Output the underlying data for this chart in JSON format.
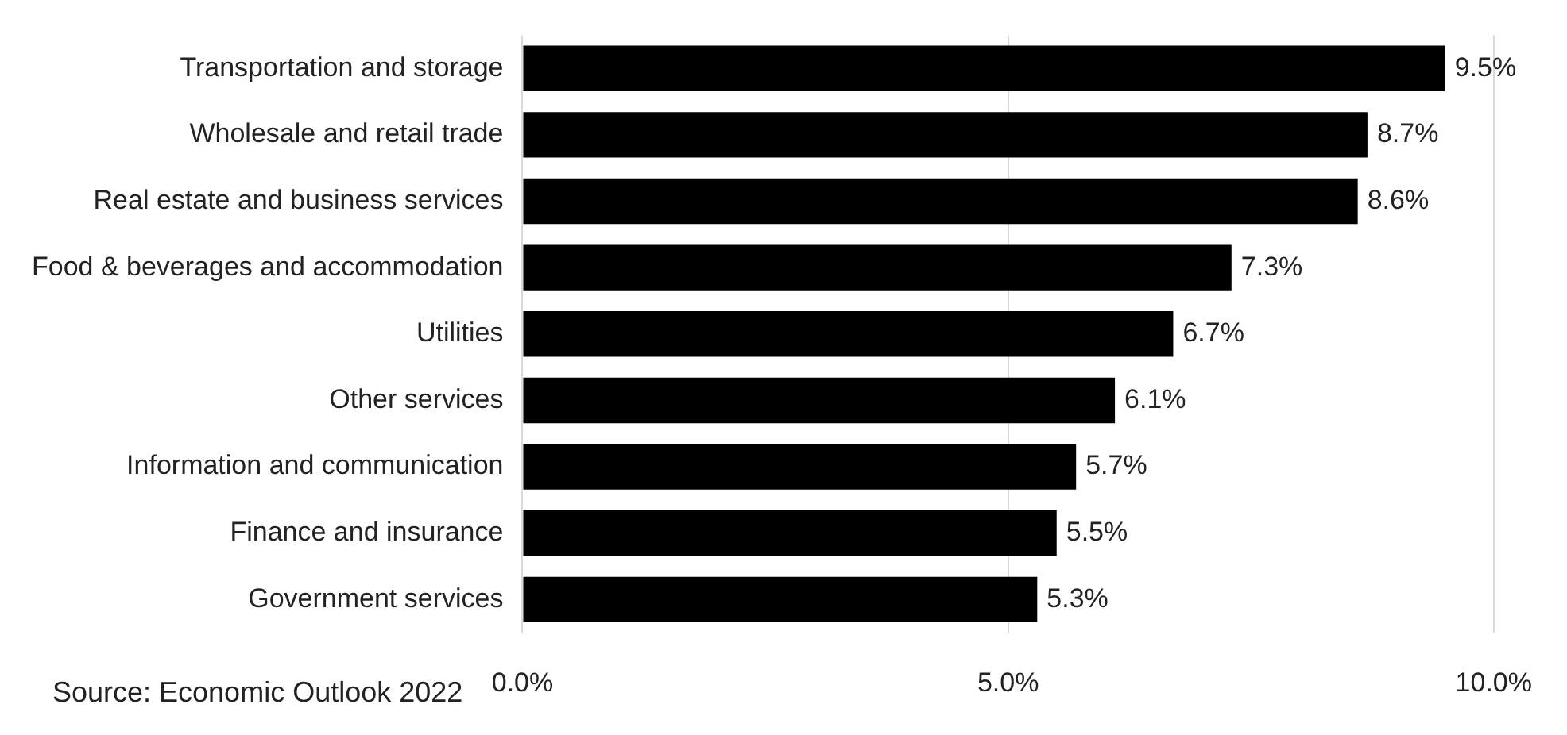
{
  "chart_data": {
    "type": "bar",
    "orientation": "horizontal",
    "categories": [
      "Transportation and storage",
      "Wholesale and retail trade",
      "Real estate and business services",
      "Food & beverages and accommodation",
      "Utilities",
      "Other services",
      "Information and communication",
      "Finance and insurance",
      "Government services"
    ],
    "values": [
      9.5,
      8.7,
      8.6,
      7.3,
      6.7,
      6.1,
      5.7,
      5.5,
      5.3
    ],
    "value_labels": [
      "9.5%",
      "8.7%",
      "8.6%",
      "7.3%",
      "6.7%",
      "6.1%",
      "5.7%",
      "5.5%",
      "5.3%"
    ],
    "color": "#000000",
    "xlim": [
      0,
      10
    ],
    "xticks": [
      {
        "value": 0,
        "label": "0.0%"
      },
      {
        "value": 5,
        "label": "5.0%"
      },
      {
        "value": 10,
        "label": "10.0%"
      }
    ],
    "grid": "x",
    "annotations": [
      "Source: Economic Outlook 2022"
    ]
  }
}
